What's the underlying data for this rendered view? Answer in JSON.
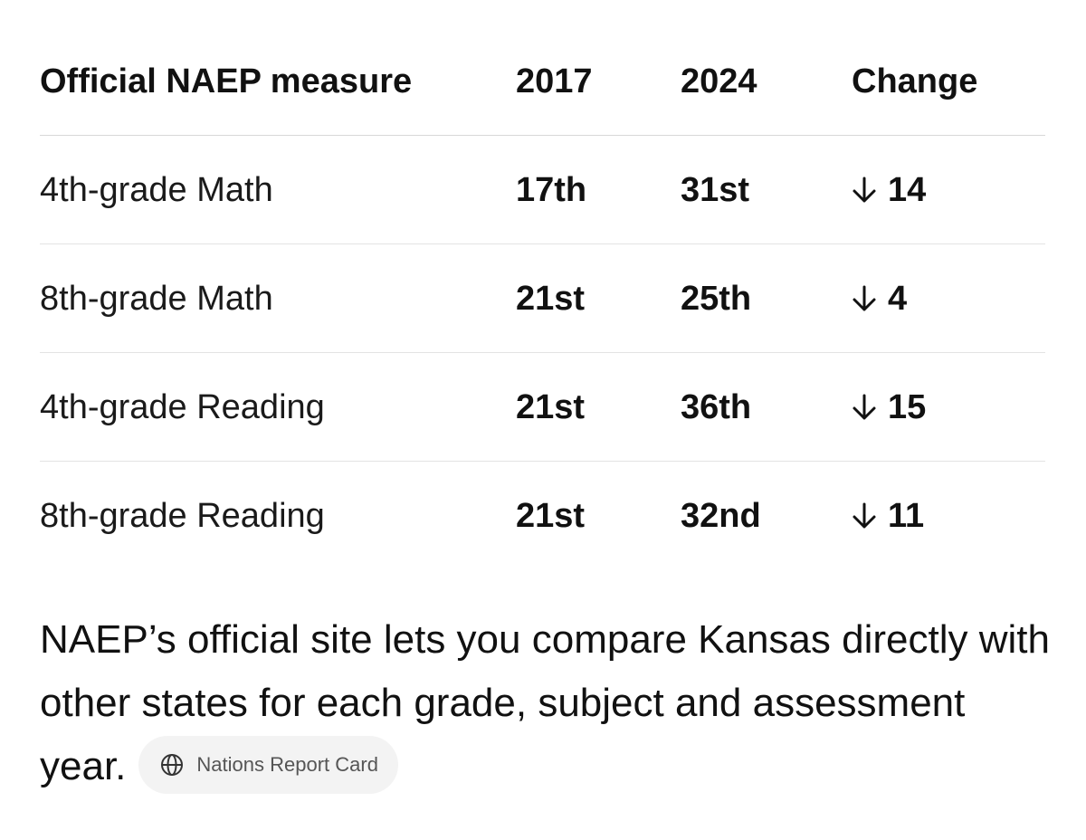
{
  "table": {
    "headers": {
      "measure": "Official NAEP measure",
      "year1": "2017",
      "year2": "2024",
      "change": "Change"
    },
    "rows": [
      {
        "measure": "4th-grade Math",
        "y2017": "17th",
        "y2024": "31st",
        "change": "14",
        "direction": "down"
      },
      {
        "measure": "8th-grade Math",
        "y2017": "21st",
        "y2024": "25th",
        "change": "4",
        "direction": "down"
      },
      {
        "measure": "4th-grade Reading",
        "y2017": "21st",
        "y2024": "36th",
        "change": "15",
        "direction": "down"
      },
      {
        "measure": "8th-grade Reading",
        "y2017": "21st",
        "y2024": "32nd",
        "change": "11",
        "direction": "down"
      }
    ]
  },
  "paragraph": {
    "text": "NAEP’s official site lets you compare Kansas directly with other states for each grade, subject and assessment year.",
    "source_chip": {
      "label": "Nations Report Card",
      "icon": "globe-icon"
    }
  },
  "colors": {
    "text": "#111111",
    "divider": "#e3e3e3",
    "chip_bg": "#f3f3f3",
    "chip_text": "#555555"
  }
}
